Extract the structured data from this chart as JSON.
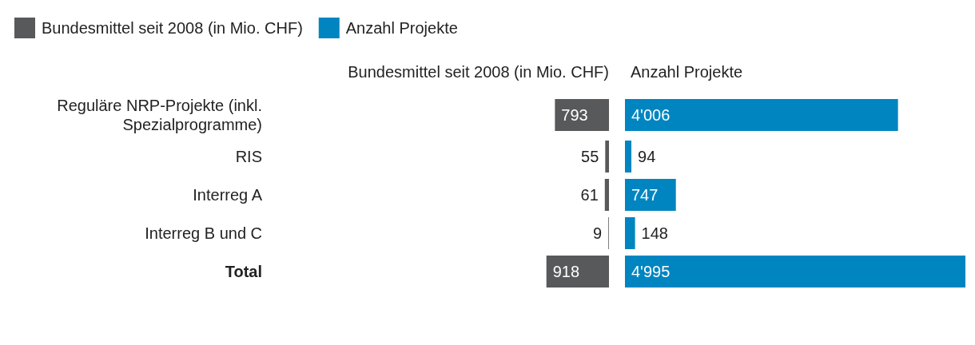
{
  "chart_data": [
    {
      "type": "bar",
      "orientation": "horizontal",
      "legend": "top left",
      "title": "Bundesmittel seit 2008 (in Mio. CHF)",
      "categories": [
        "Reguläre NRP-Projekte (inkl. Spezialprogramme)",
        "RIS",
        "Interreg A",
        "Interreg B und C",
        "Total"
      ],
      "series": [
        {
          "name": "Bundesmittel seit 2008 (in Mio. CHF)",
          "color": "#58595b",
          "values": [
            793,
            55,
            61,
            9,
            918
          ]
        }
      ],
      "data_labels": true
    },
    {
      "type": "bar",
      "orientation": "horizontal",
      "legend": "top left",
      "title": "Anzahl Projekte",
      "categories": [
        null,
        null,
        null,
        null,
        null
      ],
      "series": [
        {
          "name": "Anzahl Projekte",
          "color": "#0085c1",
          "values": [
            4006,
            94,
            747,
            148,
            4995
          ],
          "value_labels": [
            "4'006",
            "94",
            "747",
            "148",
            "4'995"
          ]
        }
      ]
    }
  ]
}
